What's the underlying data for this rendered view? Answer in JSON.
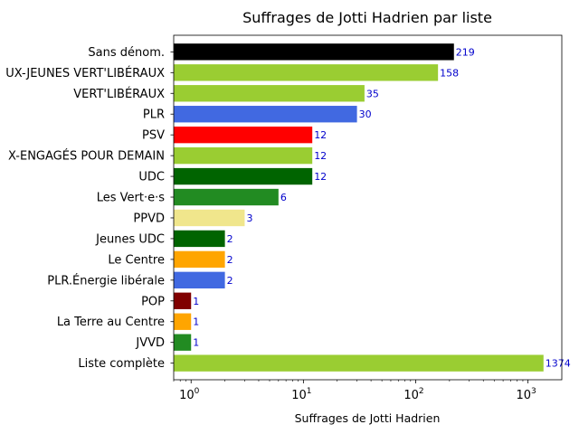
{
  "chart_data": {
    "type": "bar",
    "orientation": "horizontal",
    "title": "Suffrages de Jotti Hadrien par liste",
    "xlabel": "Suffrages de Jotti Hadrien",
    "ylabel": "",
    "xscale": "log",
    "xlim": [
      0.7,
      2000
    ],
    "xticks": [
      {
        "base": "10",
        "exp": "0",
        "value": 1
      },
      {
        "base": "10",
        "exp": "1",
        "value": 10
      },
      {
        "base": "10",
        "exp": "2",
        "value": 100
      },
      {
        "base": "10",
        "exp": "3",
        "value": 1000
      }
    ],
    "grid": false,
    "legend": "none",
    "value_label_color": "#0000cc",
    "categories": [
      "Sans dénom.",
      "UX-JEUNES VERT'LIBÉRAUX",
      "VERT'LIBÉRAUX",
      "PLR",
      "PSV",
      "X-ENGAGÉS POUR DEMAIN",
      "UDC",
      "Les Vert·e·s",
      "PPVD",
      "Jeunes UDC",
      "Le Centre",
      "PLR.Énergie libérale",
      "POP",
      "La Terre au Centre",
      "JVVD",
      "Liste complète"
    ],
    "values": [
      219,
      158,
      35,
      30,
      12,
      12,
      12,
      6,
      3,
      2,
      2,
      2,
      1,
      1,
      1,
      1374
    ],
    "value_labels": [
      "219",
      "158",
      "35",
      "30",
      "12",
      "12",
      "12",
      "6",
      "3",
      "2",
      "2",
      "2",
      "1",
      "1",
      "1",
      "1374"
    ],
    "colors": [
      "#000000",
      "#9acd32",
      "#9acd32",
      "#4169e1",
      "#ff0000",
      "#9acd32",
      "#006400",
      "#228b22",
      "#f0e68c",
      "#006400",
      "#ffa500",
      "#4169e1",
      "#800000",
      "#ffa500",
      "#228b22",
      "#9acd32"
    ]
  }
}
